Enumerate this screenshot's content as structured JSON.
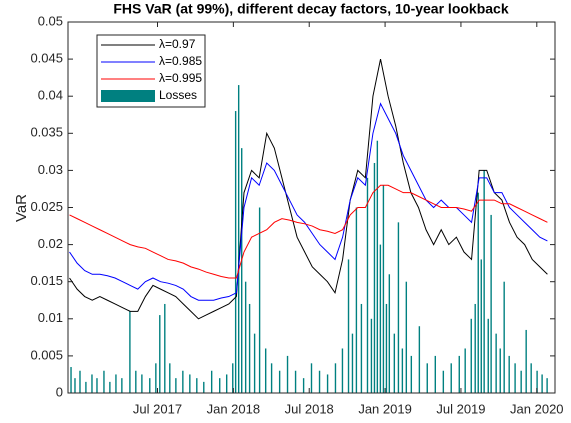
{
  "chart_data": {
    "type": "line",
    "title": "FHS VaR (at 99%), different decay factors, 10-year lookback",
    "y_label": "VaR",
    "xlim": [
      2016.91,
      2020.12
    ],
    "xticks": [
      {
        "value": 2017.5,
        "label": "Jul 2017"
      },
      {
        "value": 2018.0,
        "label": "Jan 2018"
      },
      {
        "value": 2018.5,
        "label": "Jul 2018"
      },
      {
        "value": 2019.0,
        "label": "Jan 2019"
      },
      {
        "value": 2019.5,
        "label": "Jul 2019"
      },
      {
        "value": 2020.0,
        "label": "Jan 2020"
      }
    ],
    "ylim": [
      0,
      0.05
    ],
    "yticks": [
      0,
      0.005,
      0.01,
      0.015,
      0.02,
      0.025,
      0.03,
      0.035,
      0.04,
      0.045,
      0.05
    ],
    "grid": false,
    "legend": "upper-left",
    "x": [
      2016.92,
      2016.97,
      2017.02,
      2017.07,
      2017.12,
      2017.17,
      2017.22,
      2017.27,
      2017.32,
      2017.37,
      2017.42,
      2017.47,
      2017.52,
      2017.57,
      2017.62,
      2017.67,
      2017.72,
      2017.77,
      2017.82,
      2017.87,
      2017.92,
      2017.97,
      2018.02,
      2018.07,
      2018.12,
      2018.17,
      2018.22,
      2018.27,
      2018.32,
      2018.37,
      2018.42,
      2018.47,
      2018.52,
      2018.57,
      2018.62,
      2018.67,
      2018.72,
      2018.77,
      2018.82,
      2018.87,
      2018.92,
      2018.97,
      2019.02,
      2019.07,
      2019.12,
      2019.17,
      2019.22,
      2019.27,
      2019.32,
      2019.37,
      2019.42,
      2019.47,
      2019.52,
      2019.57,
      2019.62,
      2019.67,
      2019.72,
      2019.77,
      2019.82,
      2019.87,
      2019.92,
      2019.97,
      2020.02,
      2020.07
    ],
    "series": [
      {
        "name": "λ=0.97",
        "type": "line",
        "color": "#000000",
        "values": [
          0.0155,
          0.014,
          0.013,
          0.0125,
          0.013,
          0.0125,
          0.012,
          0.0115,
          0.011,
          0.011,
          0.013,
          0.0145,
          0.014,
          0.0135,
          0.013,
          0.012,
          0.011,
          0.01,
          0.0105,
          0.011,
          0.0115,
          0.012,
          0.013,
          0.027,
          0.03,
          0.029,
          0.035,
          0.033,
          0.029,
          0.025,
          0.021,
          0.019,
          0.017,
          0.016,
          0.015,
          0.0135,
          0.018,
          0.026,
          0.03,
          0.029,
          0.04,
          0.045,
          0.04,
          0.036,
          0.031,
          0.027,
          0.025,
          0.022,
          0.02,
          0.022,
          0.02,
          0.021,
          0.019,
          0.018,
          0.03,
          0.03,
          0.027,
          0.026,
          0.023,
          0.021,
          0.02,
          0.018,
          0.017,
          0.016
        ]
      },
      {
        "name": "λ=0.985",
        "type": "line",
        "color": "#0000ff",
        "values": [
          0.019,
          0.0175,
          0.0165,
          0.016,
          0.016,
          0.0158,
          0.0155,
          0.015,
          0.0145,
          0.014,
          0.015,
          0.0155,
          0.015,
          0.0148,
          0.0145,
          0.014,
          0.013,
          0.0125,
          0.0125,
          0.0125,
          0.0128,
          0.013,
          0.0135,
          0.025,
          0.029,
          0.028,
          0.031,
          0.03,
          0.028,
          0.026,
          0.024,
          0.023,
          0.0215,
          0.02,
          0.019,
          0.018,
          0.021,
          0.026,
          0.029,
          0.028,
          0.035,
          0.039,
          0.037,
          0.035,
          0.032,
          0.03,
          0.028,
          0.026,
          0.025,
          0.026,
          0.025,
          0.025,
          0.024,
          0.023,
          0.029,
          0.029,
          0.027,
          0.027,
          0.025,
          0.024,
          0.023,
          0.022,
          0.021,
          0.0205
        ]
      },
      {
        "name": "λ=0.995",
        "type": "line",
        "color": "#ff0000",
        "values": [
          0.024,
          0.0235,
          0.023,
          0.0225,
          0.022,
          0.0215,
          0.021,
          0.0205,
          0.02,
          0.0197,
          0.0195,
          0.019,
          0.0185,
          0.018,
          0.0178,
          0.0175,
          0.017,
          0.0167,
          0.0163,
          0.016,
          0.0157,
          0.0155,
          0.0155,
          0.019,
          0.021,
          0.0215,
          0.022,
          0.023,
          0.0235,
          0.0233,
          0.023,
          0.0228,
          0.0225,
          0.022,
          0.0218,
          0.0215,
          0.022,
          0.024,
          0.025,
          0.025,
          0.027,
          0.028,
          0.028,
          0.0275,
          0.027,
          0.027,
          0.0265,
          0.026,
          0.0255,
          0.025,
          0.025,
          0.025,
          0.0248,
          0.0245,
          0.026,
          0.026,
          0.026,
          0.0255,
          0.0255,
          0.025,
          0.0245,
          0.024,
          0.0235,
          0.023
        ]
      },
      {
        "name": "Losses",
        "type": "bar",
        "color": "#008080",
        "x": [
          2016.93,
          2016.956,
          2016.989,
          2017.028,
          2017.068,
          2017.101,
          2017.147,
          2017.186,
          2017.226,
          2017.265,
          2017.318,
          2017.357,
          2017.397,
          2017.449,
          2017.489,
          2017.515,
          2017.548,
          2017.581,
          2017.621,
          2017.667,
          2017.713,
          2017.759,
          2017.805,
          2017.857,
          2017.91,
          2017.956,
          2017.996,
          2018.015,
          2018.035,
          2018.055,
          2018.081,
          2018.107,
          2018.14,
          2018.173,
          2018.213,
          2018.252,
          2018.305,
          2018.357,
          2018.41,
          2018.463,
          2018.515,
          2018.568,
          2018.621,
          2018.673,
          2018.719,
          2018.759,
          2018.785,
          2018.811,
          2018.844,
          2018.884,
          2018.91,
          2018.93,
          2018.949,
          2018.969,
          2018.989,
          2019.009,
          2019.028,
          2019.061,
          2019.088,
          2019.114,
          2019.14,
          2019.173,
          2019.226,
          2019.278,
          2019.331,
          2019.384,
          2019.436,
          2019.489,
          2019.528,
          2019.568,
          2019.594,
          2019.614,
          2019.634,
          2019.653,
          2019.68,
          2019.699,
          2019.732,
          2019.759,
          2019.785,
          2019.818,
          2019.857,
          2019.897,
          2019.93,
          2019.963,
          2020.002,
          2020.035,
          2020.068
        ],
        "values": [
          0.0035,
          0.002,
          0.003,
          0.0015,
          0.0025,
          0.002,
          0.003,
          0.0015,
          0.0025,
          0.002,
          0.011,
          0.003,
          0.0025,
          0.002,
          0.004,
          0.0105,
          0.012,
          0.004,
          0.002,
          0.003,
          0.0025,
          0.002,
          0.0015,
          0.003,
          0.002,
          0.0025,
          0.004,
          0.038,
          0.0415,
          0.033,
          0.015,
          0.012,
          0.008,
          0.025,
          0.006,
          0.004,
          0.003,
          0.005,
          0.003,
          0.002,
          0.004,
          0.003,
          0.0025,
          0.004,
          0.006,
          0.018,
          0.008,
          0.025,
          0.012,
          0.029,
          0.01,
          0.031,
          0.034,
          0.02,
          0.028,
          0.012,
          0.016,
          0.008,
          0.023,
          0.006,
          0.015,
          0.005,
          0.009,
          0.004,
          0.005,
          0.003,
          0.004,
          0.005,
          0.006,
          0.01,
          0.012,
          0.027,
          0.018,
          0.03,
          0.01,
          0.024,
          0.008,
          0.006,
          0.015,
          0.005,
          0.004,
          0.003,
          0.0085,
          0.004,
          0.003,
          0.0025,
          0.002
        ]
      }
    ]
  }
}
